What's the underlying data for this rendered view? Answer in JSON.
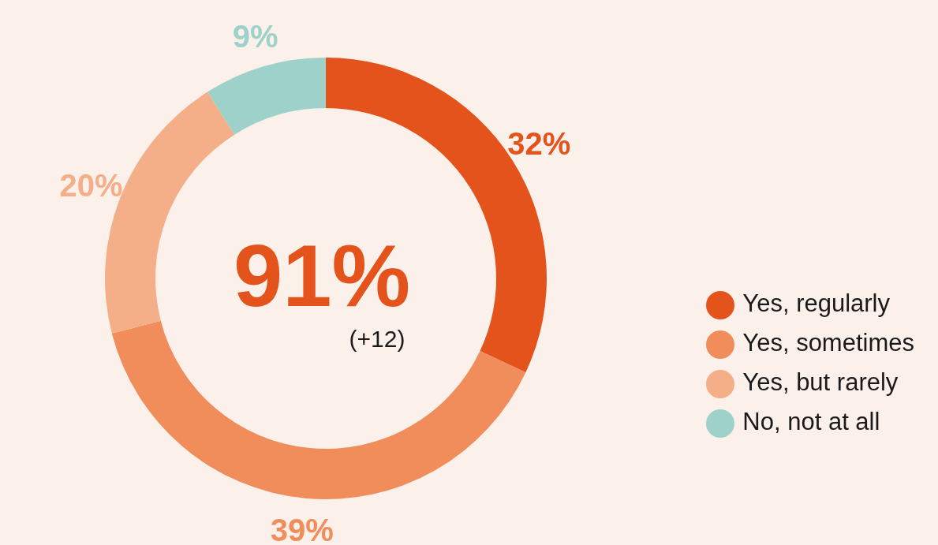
{
  "chart_data": {
    "type": "donut",
    "categories": [
      "Yes, regularly",
      "Yes, sometimes",
      "Yes, but rarely",
      "No, not at all"
    ],
    "values": [
      32,
      39,
      20,
      9
    ],
    "colors": [
      "#e5531d",
      "#f08d5a",
      "#f4ae88",
      "#9dd1c9"
    ],
    "value_labels": [
      "32%",
      "39%",
      "20%",
      "9%"
    ],
    "annotations": [
      "91%",
      "(+12)"
    ],
    "legend": "right"
  }
}
